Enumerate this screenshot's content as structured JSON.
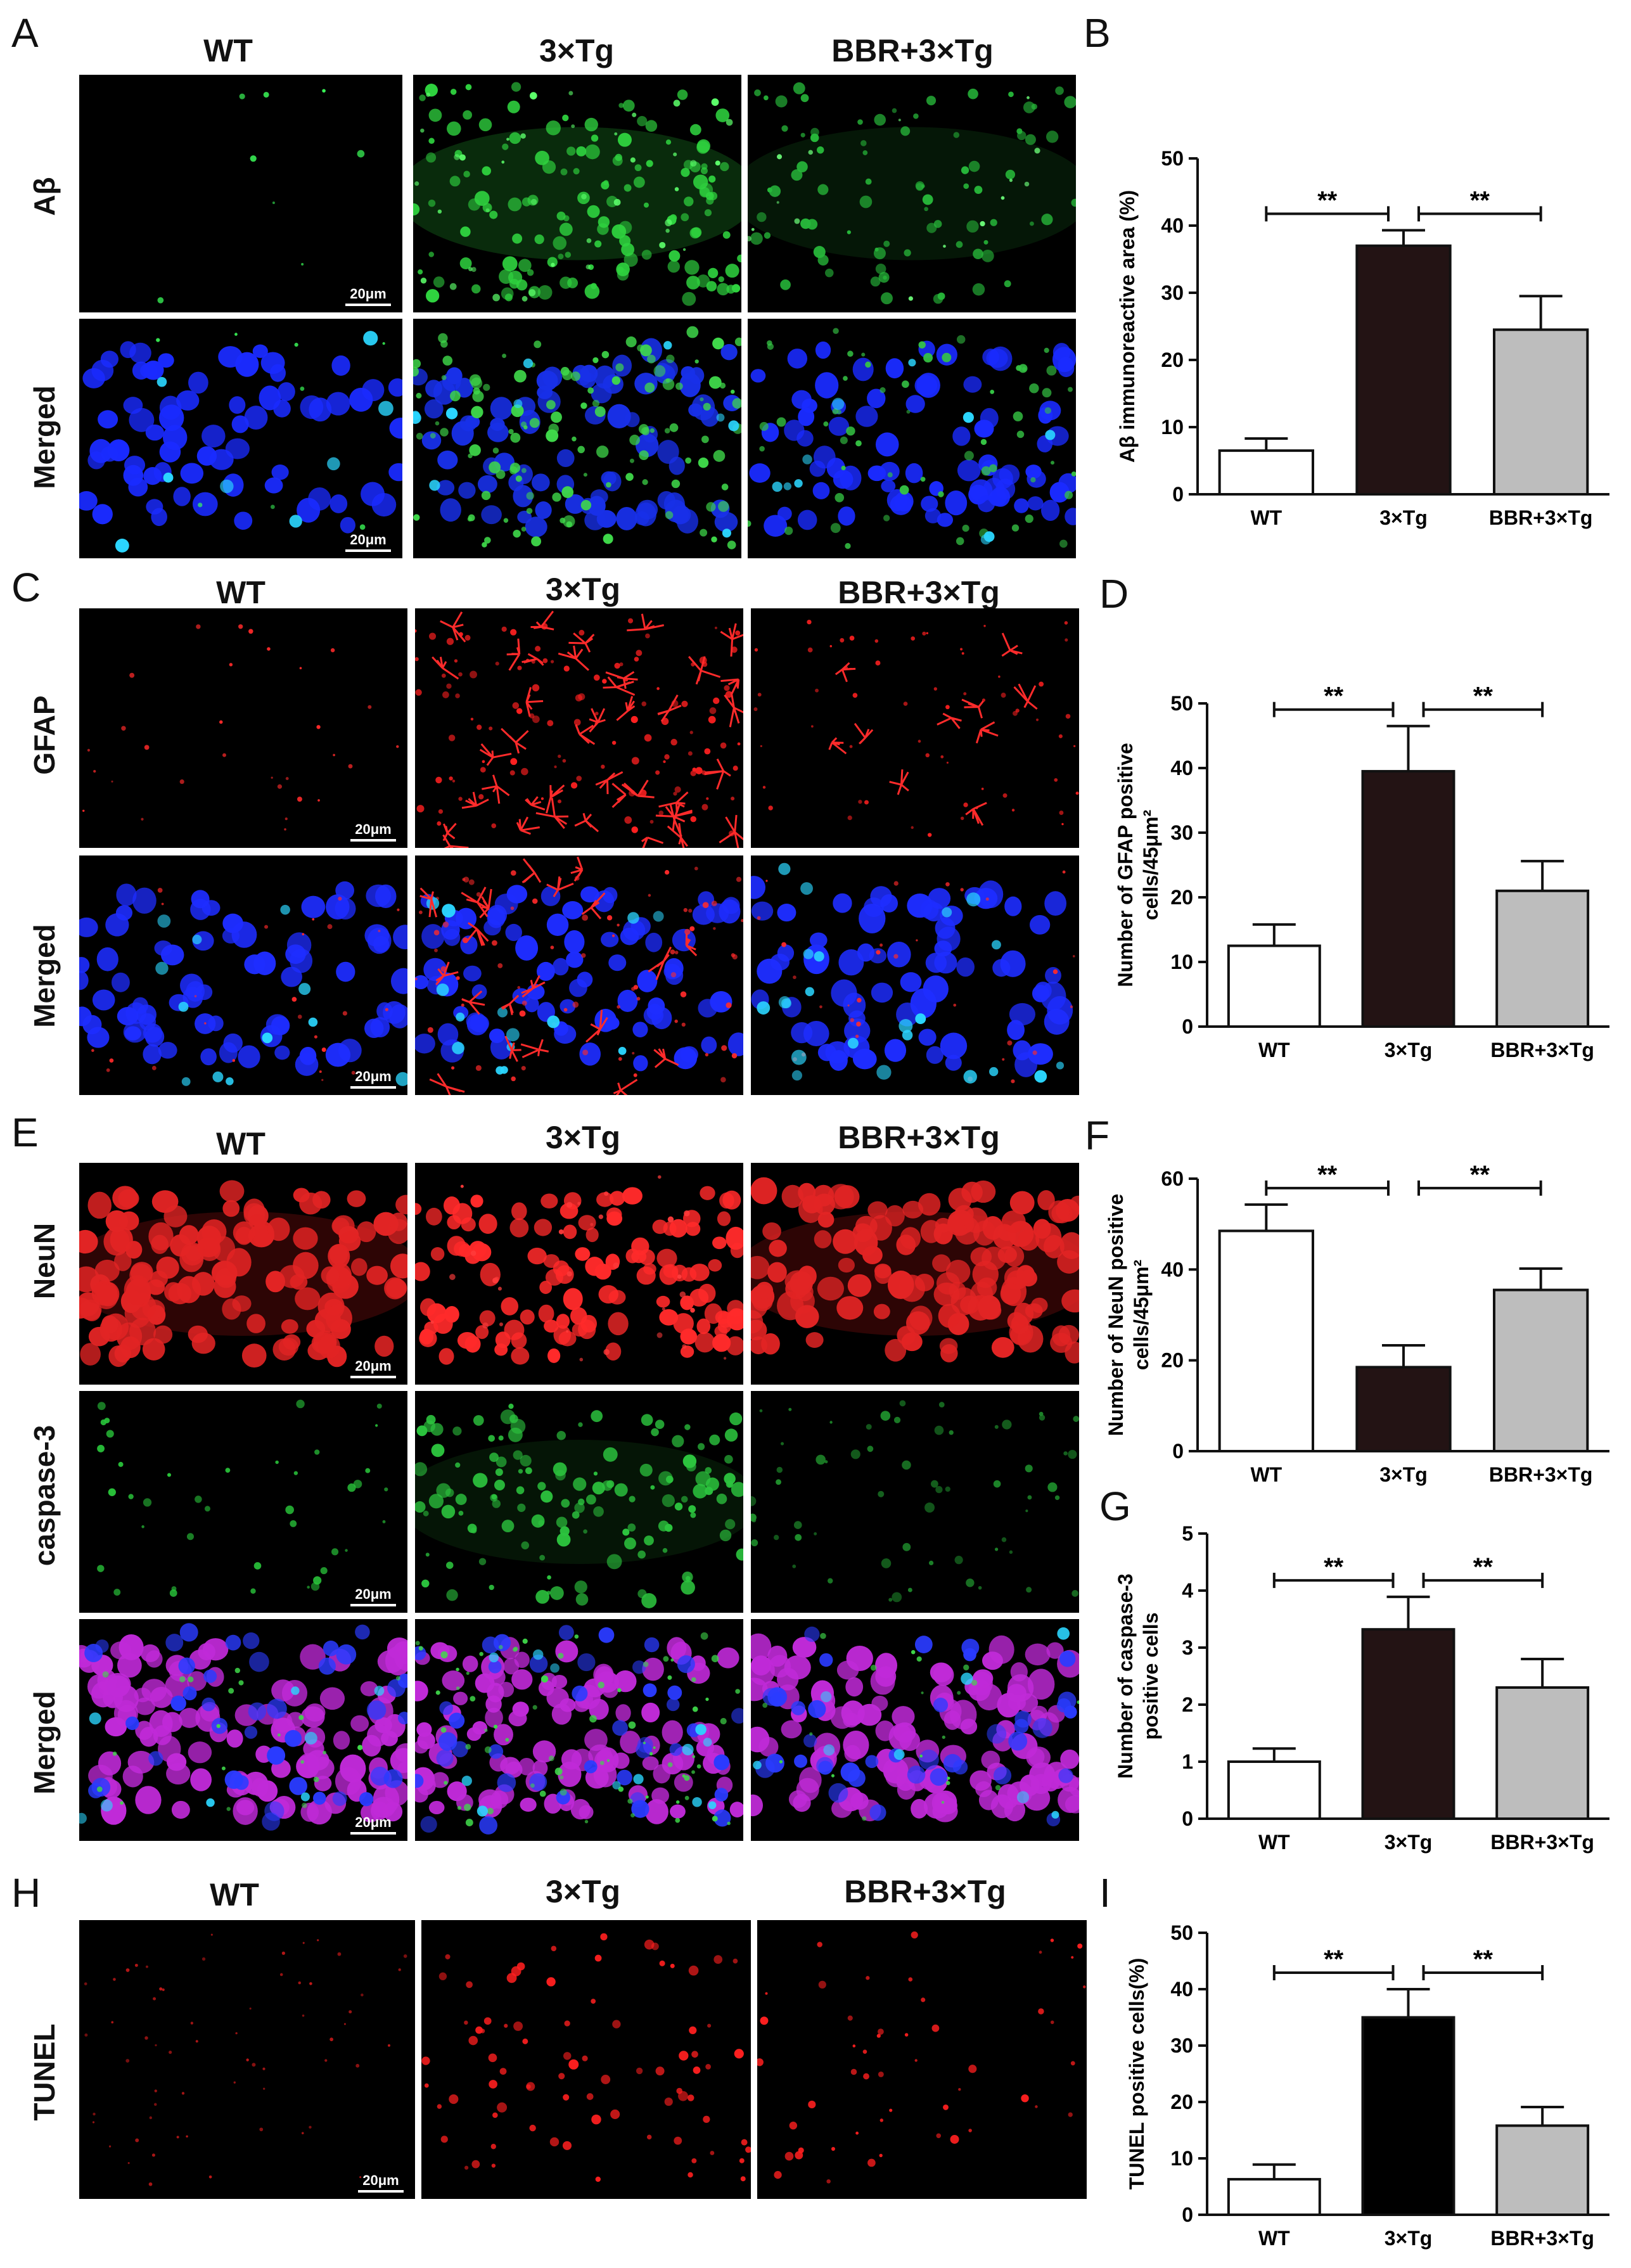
{
  "panels": {
    "A": {
      "letter": "A",
      "columns": [
        "WT",
        "3×Tg",
        "BBR+3×Tg"
      ],
      "rows": [
        "Aβ",
        "Merged"
      ],
      "scale": "20μm"
    },
    "B": {
      "letter": "B"
    },
    "C": {
      "letter": "C",
      "columns": [
        "WT",
        "3×Tg",
        "BBR+3×Tg"
      ],
      "rows": [
        "GFAP",
        "Merged"
      ],
      "scale": "20μm"
    },
    "D": {
      "letter": "D"
    },
    "E": {
      "letter": "E",
      "columns": [
        "WT",
        "3×Tg",
        "BBR+3×Tg"
      ],
      "rows": [
        "NeuN",
        "caspase-3",
        "Merged"
      ],
      "scale": "20μm"
    },
    "F": {
      "letter": "F"
    },
    "G": {
      "letter": "G"
    },
    "H": {
      "letter": "H",
      "columns": [
        "WT",
        "3×Tg",
        "BBR+3×Tg"
      ],
      "rows": [
        "TUNEL"
      ],
      "scale": "20μm"
    },
    "I": {
      "letter": "I"
    }
  },
  "colors": {
    "wt": "#ffffff",
    "tg": "#231314",
    "bbr": "#bdbdbd",
    "tg_tunel": "#000000"
  },
  "chart_data": [
    {
      "id": "B",
      "type": "bar",
      "categories": [
        "WT",
        "3×Tg",
        "BBR+3×Tg"
      ],
      "values": [
        6.5,
        37,
        24.5
      ],
      "errors": [
        1.8,
        2.3,
        5
      ],
      "ylim": [
        0,
        50
      ],
      "yticks": [
        0,
        10,
        20,
        30,
        40,
        50
      ],
      "ylabel": [
        "Aβ  immunoreactive area (%)"
      ],
      "significance": [
        {
          "from": 0,
          "to": 1,
          "label": "**"
        },
        {
          "from": 1,
          "to": 2,
          "label": "**"
        }
      ]
    },
    {
      "id": "D",
      "type": "bar",
      "categories": [
        "WT",
        "3×Tg",
        "BBR+3×Tg"
      ],
      "values": [
        12.5,
        39.5,
        21
      ],
      "errors": [
        3.3,
        7,
        4.6
      ],
      "ylim": [
        0,
        50
      ],
      "yticks": [
        0,
        10,
        20,
        30,
        40,
        50
      ],
      "ylabel": [
        "Number of GFAP positive",
        "cells/45μm²"
      ],
      "significance": [
        {
          "from": 0,
          "to": 1,
          "label": "**"
        },
        {
          "from": 1,
          "to": 2,
          "label": "**"
        }
      ]
    },
    {
      "id": "F",
      "type": "bar",
      "categories": [
        "WT",
        "3×Tg",
        "BBR+3×Tg"
      ],
      "values": [
        48.5,
        18.5,
        35.5
      ],
      "errors": [
        5.8,
        4.8,
        4.7
      ],
      "ylim": [
        0,
        60
      ],
      "yticks": [
        0,
        20,
        40,
        60
      ],
      "ylabel": [
        "Number of NeuN positive",
        "cells/45μm²"
      ],
      "significance": [
        {
          "from": 0,
          "to": 1,
          "label": "**"
        },
        {
          "from": 1,
          "to": 2,
          "label": "**"
        }
      ]
    },
    {
      "id": "G",
      "type": "bar",
      "categories": [
        "WT",
        "3×Tg",
        "BBR+3×Tg"
      ],
      "values": [
        1.0,
        3.32,
        2.3
      ],
      "errors": [
        0.23,
        0.57,
        0.5
      ],
      "ylim": [
        0,
        5
      ],
      "yticks": [
        0,
        1,
        2,
        3,
        4,
        5
      ],
      "ylabel": [
        "Number of caspase-3",
        "positive cells"
      ],
      "significance": [
        {
          "from": 0,
          "to": 1,
          "label": "**"
        },
        {
          "from": 1,
          "to": 2,
          "label": "**"
        }
      ]
    },
    {
      "id": "I",
      "type": "bar",
      "categories": [
        "WT",
        "3×Tg",
        "BBR+3×Tg"
      ],
      "values": [
        6.3,
        35,
        15.8
      ],
      "errors": [
        2.6,
        5,
        3.3
      ],
      "ylim": [
        0,
        50
      ],
      "yticks": [
        0,
        10,
        20,
        30,
        40,
        50
      ],
      "ylabel": [
        "TUNEL positive cells(%)"
      ],
      "significance": [
        {
          "from": 0,
          "to": 1,
          "label": "**"
        },
        {
          "from": 1,
          "to": 2,
          "label": "**"
        }
      ]
    }
  ]
}
